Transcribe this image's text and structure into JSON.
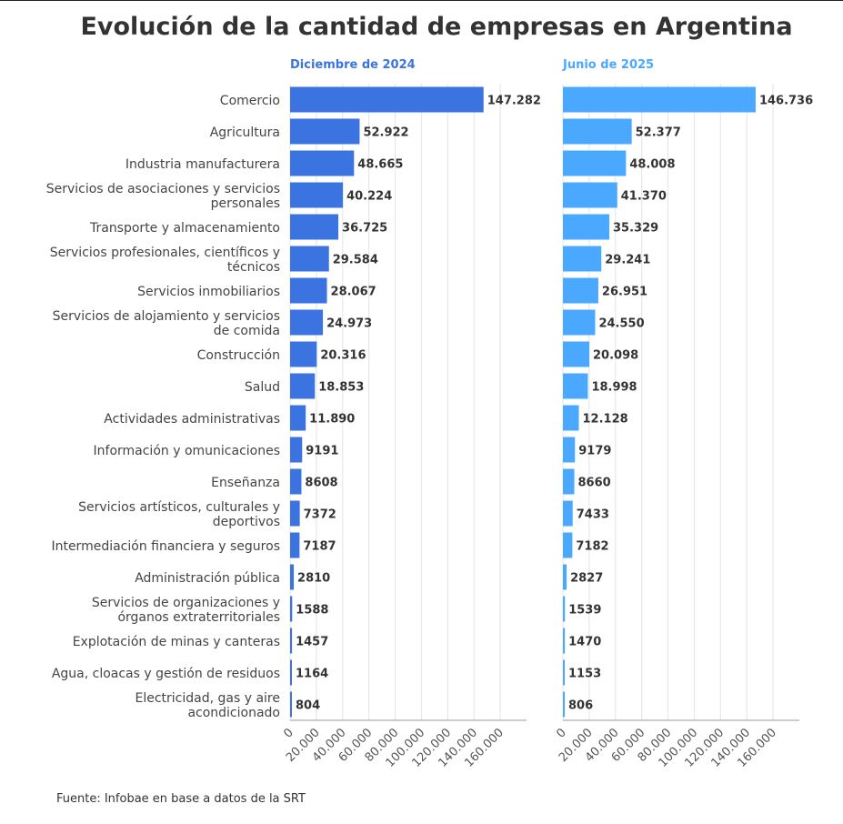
{
  "title": "Evolución de la cantidad de empresas en Argentina",
  "source": "Fuente: Infobae en base a datos de la SRT",
  "colors": {
    "left": "#3b74e0",
    "right": "#4aa8ff",
    "grid": "#e4e4e4",
    "axis": "#999999"
  },
  "chart_data": [
    {
      "type": "bar",
      "orientation": "horizontal",
      "title": "Diciembre de 2024",
      "categories": [
        "Comercio",
        "Agricultura",
        "Industria manufacturera",
        "Servicios de asociaciones y servicios\npersonales",
        "Transporte y almacenamiento",
        "Servicios profesionales, científicos y\ntécnicos",
        "Servicios inmobiliarios",
        "Servicios de alojamiento y servicios\nde comida",
        "Construcción",
        "Salud",
        "Actividades administrativas",
        "Información y omunicaciones",
        "Enseñanza",
        "Servicios artísticos, culturales y\ndeportivos",
        "Intermediación financiera y seguros",
        "Administración pública",
        "Servicios de organizaciones y\nórganos extraterritoriales",
        "Explotación de minas y canteras",
        "Agua, cloacas y gestión de residuos",
        "Electricidad, gas y aire\nacondicionado"
      ],
      "values": [
        147282,
        52922,
        48665,
        40224,
        36725,
        29584,
        28067,
        24973,
        20316,
        18853,
        11890,
        9191,
        8608,
        7372,
        7187,
        2810,
        1588,
        1457,
        1164,
        804
      ],
      "value_labels": [
        "147.282",
        "52.922",
        "48.665",
        "40.224",
        "36.725",
        "29.584",
        "28.067",
        "24.973",
        "20.316",
        "18.853",
        "11.890",
        "9191",
        "8608",
        "7372",
        "7187",
        "2810",
        "1588",
        "1457",
        "1164",
        "804"
      ],
      "xlim": [
        0,
        180000
      ],
      "ticks": [
        0,
        20000,
        40000,
        60000,
        80000,
        100000,
        120000,
        140000,
        160000
      ],
      "tick_labels": [
        "0",
        "20.000",
        "40.000",
        "60.000",
        "80.000",
        "100.000",
        "120.000",
        "140.000",
        "160.000"
      ]
    },
    {
      "type": "bar",
      "orientation": "horizontal",
      "title": "Junio de 2025",
      "values": [
        146736,
        52377,
        48008,
        41370,
        35329,
        29241,
        26951,
        24550,
        20098,
        18998,
        12128,
        9179,
        8660,
        7433,
        7182,
        2827,
        1539,
        1470,
        1153,
        806
      ],
      "value_labels": [
        "146.736",
        "52.377",
        "48.008",
        "41.370",
        "35.329",
        "29.241",
        "26.951",
        "24.550",
        "20.098",
        "18.998",
        "12.128",
        "9179",
        "8660",
        "7433",
        "7182",
        "2827",
        "1539",
        "1470",
        "1153",
        "806"
      ],
      "xlim": [
        0,
        180000
      ],
      "ticks": [
        0,
        20000,
        40000,
        60000,
        80000,
        100000,
        120000,
        140000,
        160000
      ],
      "tick_labels": [
        "0",
        "20.000",
        "40.000",
        "60.000",
        "80.000",
        "100.000",
        "120.000",
        "140.000",
        "160.000"
      ]
    }
  ]
}
